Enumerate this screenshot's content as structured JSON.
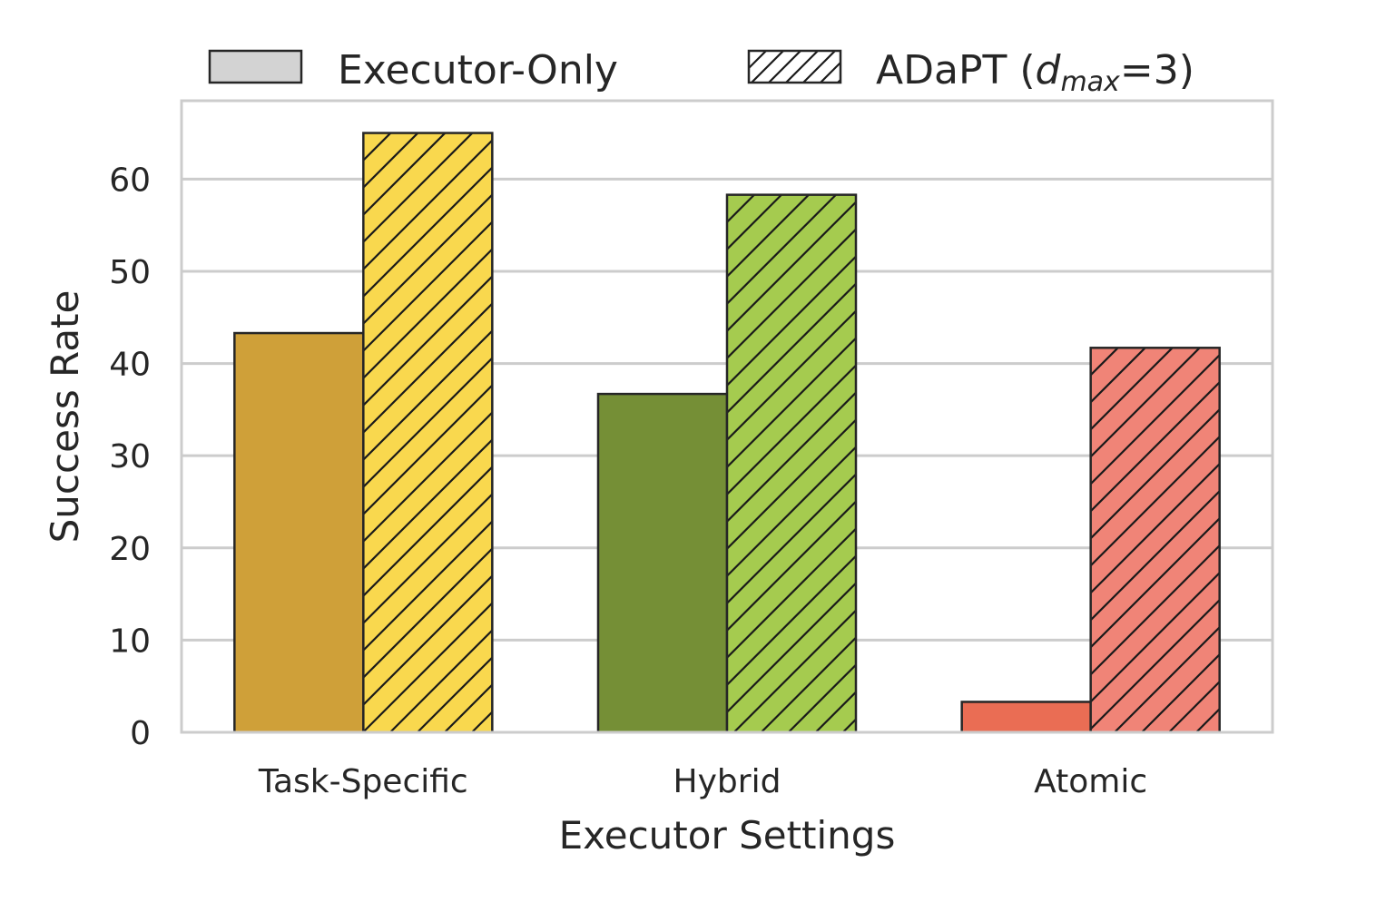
{
  "chart_data": {
    "type": "bar",
    "title": "",
    "xlabel": "Executor Settings",
    "ylabel": "Success Rate",
    "categories": [
      "Task-Specific",
      "Hybrid",
      "Atomic"
    ],
    "ylim": [
      0,
      68.5
    ],
    "yticks": [
      "0",
      "10",
      "20",
      "30",
      "40",
      "50",
      "60"
    ],
    "grid": "horizontal",
    "legend_placement": "top, outside",
    "series": [
      {
        "name": "Executor-Only",
        "values": [
          43.3,
          36.7,
          3.3
        ],
        "colors": [
          "#cfa039",
          "#758f36",
          "#ea6d54"
        ],
        "legend_color": "#d3d3d3",
        "hatch": false
      },
      {
        "name": "ADaPT",
        "values": [
          65.0,
          58.3,
          41.7
        ],
        "colors": [
          "#f9d84e",
          "#a5cb4f",
          "#f08477"
        ],
        "legend_color": "#ffffff",
        "hatch": true
      }
    ],
    "legend": {
      "executor_only": "Executor-Only",
      "adapt_prefix": "ADaPT (",
      "adapt_d": "d",
      "adapt_sub": "max",
      "adapt_suffix": "=3)"
    }
  }
}
